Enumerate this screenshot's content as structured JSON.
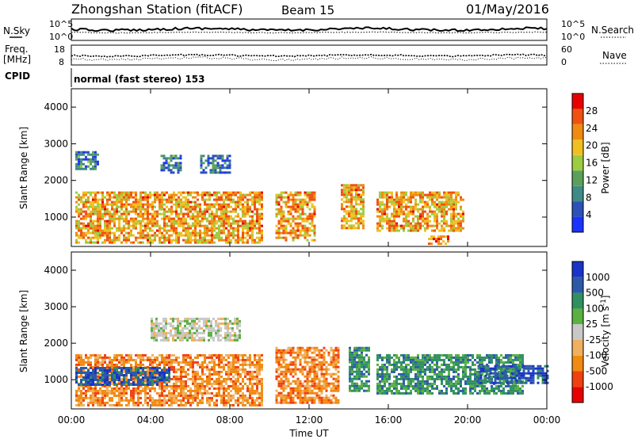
{
  "header": {
    "station": "Zhongshan Station (fitACF)",
    "beam": "Beam 15",
    "date": "01/May/2016"
  },
  "panels": {
    "sky": {
      "left_label": "N.Sky",
      "right_label": "N.Search",
      "ticks_left": [
        "10^5",
        "10^0"
      ],
      "ticks_right": [
        "10^5",
        "10^0"
      ]
    },
    "freq": {
      "left_label_1": "Freq.",
      "left_label_2": "[MHz]",
      "right_label": "Nave",
      "ticks_left": [
        "18",
        "8"
      ],
      "ticks_right": [
        "60",
        "0"
      ]
    },
    "cpid": {
      "label": "CPID",
      "value": "normal (fast stereo) 153"
    }
  },
  "colors": {
    "power_scale": [
      "#1a33ff",
      "#2c52b8",
      "#3f8a86",
      "#5aa05a",
      "#9ccc40",
      "#f0c020",
      "#f08a10",
      "#f05010",
      "#e80000"
    ],
    "velocity_scale": [
      "#e80000",
      "#f04010",
      "#f08a10",
      "#f0b060",
      "#c8c8c8",
      "#5ab040",
      "#2f9060",
      "#2c5aa8",
      "#1a33c8"
    ]
  },
  "chart_data": [
    {
      "type": "heatmap",
      "name": "power",
      "ylabel": "Slant Range [km]",
      "yticks": [
        "1000",
        "2000",
        "3000",
        "4000"
      ],
      "ylim": [
        200,
        4500
      ],
      "xlim": [
        "00:00",
        "24:00"
      ],
      "colorbar": {
        "label": "Power [dB]",
        "ticks": [
          "4",
          "8",
          "12",
          "16",
          "20",
          "24",
          "28"
        ],
        "range": [
          0,
          32
        ]
      },
      "echo_regions": [
        {
          "t_start": 0.2,
          "t_end": 9.6,
          "r_min": 300,
          "r_max": 1700,
          "level": 24
        },
        {
          "t_start": 0.2,
          "t_end": 1.4,
          "r_min": 2300,
          "r_max": 2800,
          "level": 6
        },
        {
          "t_start": 4.5,
          "t_end": 5.5,
          "r_min": 2200,
          "r_max": 2700,
          "level": 6
        },
        {
          "t_start": 6.5,
          "t_end": 8.0,
          "r_min": 2200,
          "r_max": 2700,
          "level": 6
        },
        {
          "t_start": 10.3,
          "t_end": 12.3,
          "r_min": 350,
          "r_max": 1700,
          "level": 24
        },
        {
          "t_start": 13.6,
          "t_end": 14.7,
          "r_min": 700,
          "r_max": 1900,
          "level": 24
        },
        {
          "t_start": 15.4,
          "t_end": 19.8,
          "r_min": 650,
          "r_max": 1700,
          "level": 24
        },
        {
          "t_start": 18.0,
          "t_end": 19.0,
          "r_min": 250,
          "r_max": 500,
          "level": 28
        }
      ]
    },
    {
      "type": "heatmap",
      "name": "velocity",
      "ylabel": "Slant Range [km]",
      "yticks": [
        "1000",
        "2000",
        "3000",
        "4000"
      ],
      "ylim": [
        200,
        4500
      ],
      "xlim": [
        "00:00",
        "24:00"
      ],
      "xticks": [
        "00:00",
        "04:00",
        "08:00",
        "12:00",
        "16:00",
        "20:00",
        "00:00"
      ],
      "xlabel": "Time UT",
      "colorbar": {
        "label": "Velocity [m s^-1]",
        "ticks": [
          "-1000",
          "-500",
          "-100",
          "-25",
          "25",
          "100",
          "500",
          "1000"
        ]
      },
      "echo_regions": [
        {
          "t_start": 0.2,
          "t_end": 9.6,
          "r_min": 300,
          "r_max": 1700,
          "level": -200
        },
        {
          "t_start": 0.2,
          "t_end": 5.0,
          "r_min": 850,
          "r_max": 1350,
          "level": 600
        },
        {
          "t_start": 4.0,
          "t_end": 8.5,
          "r_min": 2100,
          "r_max": 2700,
          "level": 0
        },
        {
          "t_start": 10.3,
          "t_end": 13.5,
          "r_min": 350,
          "r_max": 1900,
          "level": -200
        },
        {
          "t_start": 14.0,
          "t_end": 15.0,
          "r_min": 700,
          "r_max": 1900,
          "level": 100
        },
        {
          "t_start": 15.4,
          "t_end": 22.8,
          "r_min": 650,
          "r_max": 1700,
          "level": 200
        },
        {
          "t_start": 20.5,
          "t_end": 24.0,
          "r_min": 900,
          "r_max": 1400,
          "level": 700
        }
      ]
    }
  ]
}
